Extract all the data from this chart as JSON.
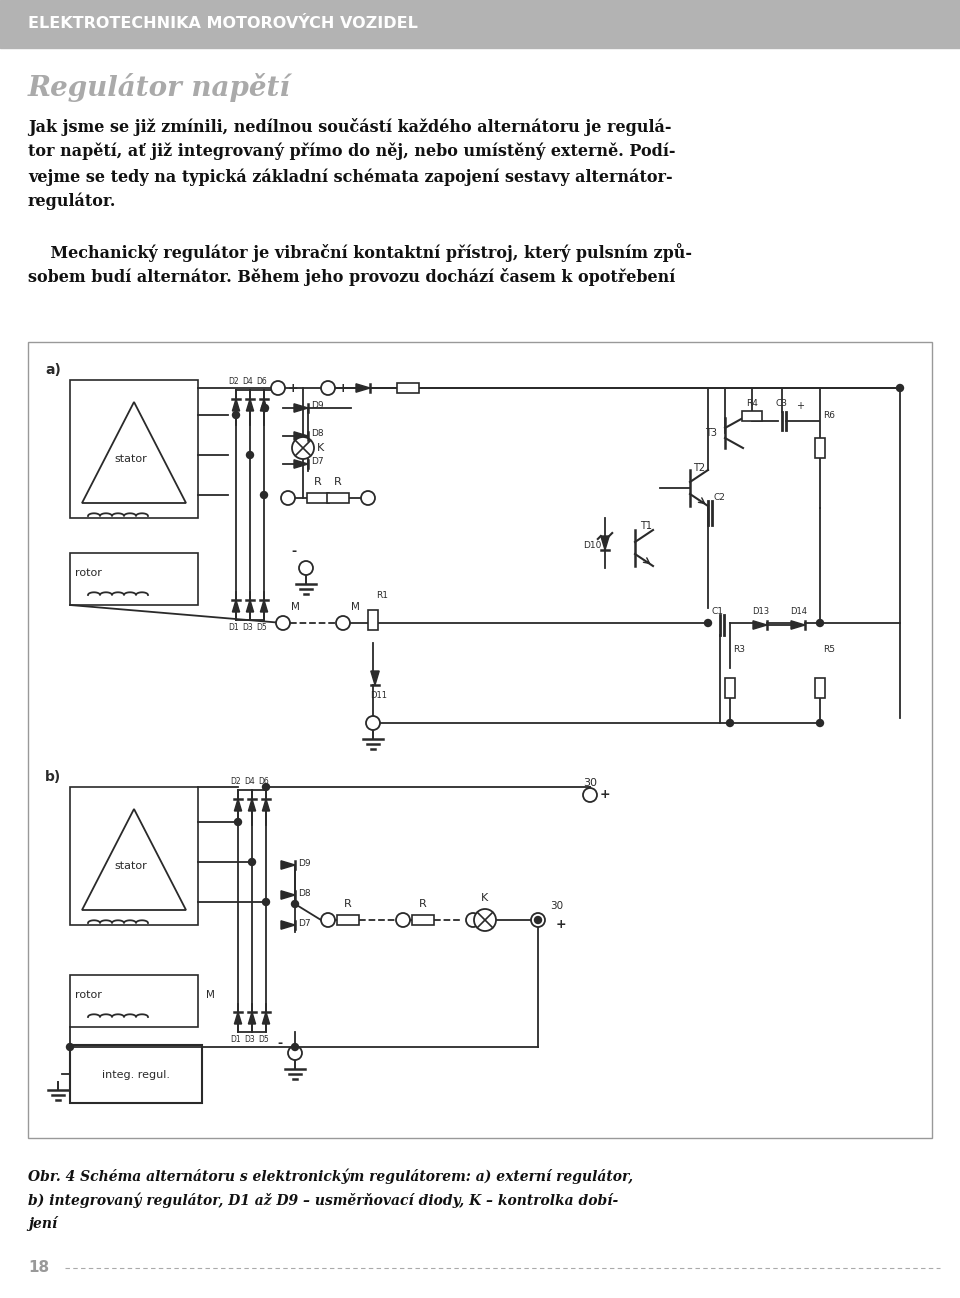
{
  "header_text": "ELEKTROTECHNIKA MOTOROVÝCH VOZIDEL",
  "header_bg": "#b3b3b3",
  "header_text_color": "#ffffff",
  "title": "Regulátor napětí",
  "title_color": "#aaaaaa",
  "page_number": "18",
  "bg_color": "#ffffff",
  "lc": "#2a2a2a",
  "diag_bg": "#f9f9f9",
  "diag_border": "#aaaaaa",
  "text_color": "#111111",
  "caption_color": "#111111"
}
